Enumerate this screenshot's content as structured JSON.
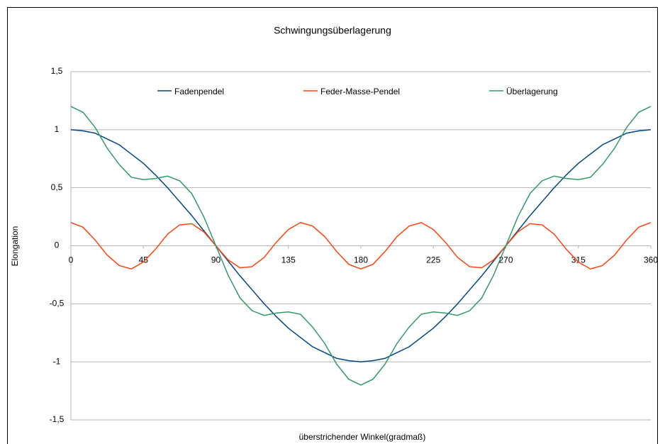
{
  "chart_data": {
    "type": "line",
    "title": "Schwingungsüberlagerung",
    "x_label": "überstrichender Winkel(gradmaß)",
    "y_label": "Elongation",
    "x": [
      0,
      7.5,
      15,
      22.5,
      30,
      37.5,
      45,
      52.5,
      60,
      67.5,
      75,
      82.5,
      90,
      97.5,
      105,
      112.5,
      120,
      127.5,
      135,
      142.5,
      150,
      157.5,
      165,
      172.5,
      180,
      187.5,
      195,
      202.5,
      210,
      217.5,
      225,
      232.5,
      240,
      247.5,
      255,
      262.5,
      270,
      277.5,
      285,
      292.5,
      300,
      307.5,
      315,
      322.5,
      330,
      337.5,
      345,
      352.5,
      360
    ],
    "series": [
      {
        "name": "Fadenpendel",
        "color": "#004586",
        "values": [
          1,
          0.99,
          0.97,
          0.92,
          0.87,
          0.79,
          0.71,
          0.61,
          0.5,
          0.38,
          0.26,
          0.13,
          0,
          -0.13,
          -0.26,
          -0.38,
          -0.5,
          -0.61,
          -0.71,
          -0.79,
          -0.87,
          -0.92,
          -0.97,
          -0.99,
          -1,
          -0.99,
          -0.97,
          -0.92,
          -0.87,
          -0.79,
          -0.71,
          -0.61,
          -0.5,
          -0.38,
          -0.26,
          -0.13,
          0,
          0.13,
          0.26,
          0.38,
          0.5,
          0.61,
          0.71,
          0.79,
          0.87,
          0.92,
          0.97,
          0.99,
          1
        ]
      },
      {
        "name": "Feder-Masse-Pendel",
        "color": "#ff420e",
        "values": [
          0.2,
          0.16,
          0.05,
          -0.08,
          -0.17,
          -0.2,
          -0.14,
          -0.03,
          0.1,
          0.18,
          0.19,
          0.12,
          0,
          -0.12,
          -0.19,
          -0.18,
          -0.1,
          0.03,
          0.14,
          0.2,
          0.17,
          0.08,
          -0.05,
          -0.16,
          -0.2,
          -0.16,
          -0.05,
          0.08,
          0.17,
          0.2,
          0.14,
          0.03,
          -0.1,
          -0.18,
          -0.19,
          -0.12,
          0,
          0.12,
          0.19,
          0.18,
          0.1,
          -0.03,
          -0.14,
          -0.2,
          -0.17,
          -0.08,
          0.05,
          0.16,
          0.2
        ]
      },
      {
        "name": "Überlagerung",
        "color": "#339966",
        "values": [
          1.2,
          1.15,
          1.02,
          0.84,
          0.7,
          0.59,
          0.57,
          0.58,
          0.6,
          0.56,
          0.45,
          0.25,
          0,
          -0.25,
          -0.45,
          -0.56,
          -0.6,
          -0.58,
          -0.57,
          -0.59,
          -0.7,
          -0.84,
          -1.02,
          -1.15,
          -1.2,
          -1.15,
          -1.02,
          -0.84,
          -0.7,
          -0.59,
          -0.57,
          -0.58,
          -0.6,
          -0.56,
          -0.45,
          -0.25,
          0,
          0.25,
          0.45,
          0.56,
          0.6,
          0.58,
          0.57,
          0.59,
          0.7,
          0.84,
          1.02,
          1.15,
          1.2
        ]
      }
    ],
    "xlim": [
      0,
      360
    ],
    "xticks": [
      0,
      45,
      90,
      135,
      180,
      225,
      270,
      315,
      360
    ],
    "ylim": [
      -1.5,
      1.5
    ],
    "yticks": [
      {
        "value": -1.5,
        "label": "-1,5"
      },
      -1,
      {
        "value": -0.5,
        "label": "-0,5"
      },
      0,
      {
        "value": 0.5,
        "label": "0,5"
      },
      1,
      {
        "value": 1.5,
        "label": "1,5"
      }
    ],
    "grid": true,
    "legend": "top"
  }
}
